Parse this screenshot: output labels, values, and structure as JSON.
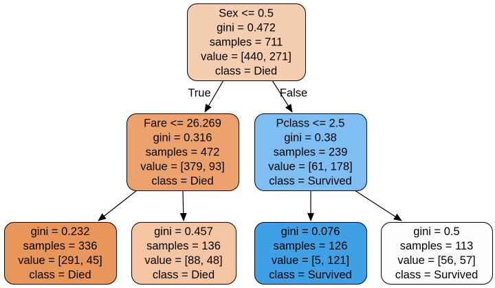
{
  "tree": {
    "nodes": [
      {
        "id": "n0",
        "color": "#f5cdb0",
        "lines": [
          "Sex <= 0.5",
          "gini = 0.472",
          "samples = 711",
          "value = [440, 271]",
          "class = Died"
        ]
      },
      {
        "id": "n1",
        "color": "#eca26d",
        "lines": [
          "Fare <= 26.269",
          "gini = 0.316",
          "samples = 472",
          "value = [379, 93]",
          "class = Died"
        ]
      },
      {
        "id": "n2",
        "color": "#7fbef2",
        "lines": [
          "Pclass <= 2.5",
          "gini = 0.38",
          "samples = 239",
          "value = [61, 178]",
          "class = Survived"
        ]
      },
      {
        "id": "n3",
        "color": "#e9965a",
        "lines": [
          "gini = 0.232",
          "samples = 336",
          "value = [291, 45]",
          "class = Died"
        ]
      },
      {
        "id": "n4",
        "color": "#f3c5a3",
        "lines": [
          "gini = 0.457",
          "samples = 136",
          "value = [88, 48]",
          "class = Died"
        ]
      },
      {
        "id": "n5",
        "color": "#40a0e6",
        "lines": [
          "gini = 0.076",
          "samples = 126",
          "value = [5, 121]",
          "class = Survived"
        ]
      },
      {
        "id": "n6",
        "color": "#fcfdff",
        "lines": [
          "gini = 0.5",
          "samples = 113",
          "value = [56, 57]",
          "class = Survived"
        ]
      }
    ],
    "edges": [
      {
        "from": "n0",
        "to": "n1",
        "label": "True"
      },
      {
        "from": "n0",
        "to": "n2",
        "label": "False"
      },
      {
        "from": "n1",
        "to": "n3",
        "label": ""
      },
      {
        "from": "n1",
        "to": "n4",
        "label": ""
      },
      {
        "from": "n2",
        "to": "n5",
        "label": ""
      },
      {
        "from": "n2",
        "to": "n6",
        "label": ""
      }
    ]
  }
}
